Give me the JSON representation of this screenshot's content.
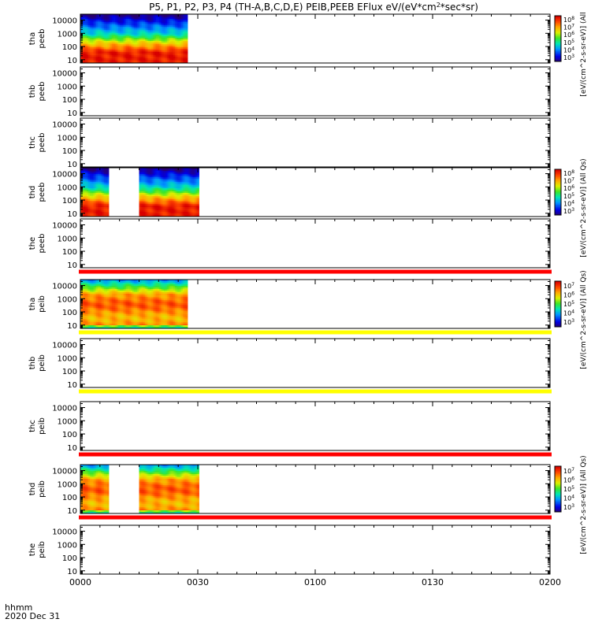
{
  "chart_data": {
    "type": "heatmap",
    "title": "P5, P1, P2, P3, P4 (TH-A,B,C,D,E) PEIB,PEEB EFlux eV/(eV*cm2*sec*sr)",
    "title_parts": {
      "prefix": "P5, P1, P2, P3, P4 (TH-A,B,C,D,E) PEIB,PEEB EFlux eV/(eV*cm",
      "sup": "2",
      "suffix": "*sec*sr)"
    },
    "xlabel": {
      "line1": "hhmm",
      "line2": "2020 Dec 31"
    },
    "x_ticks": [
      "0000",
      "0030",
      "0100",
      "0130",
      "0200"
    ],
    "x_range_minutes": [
      0,
      120
    ],
    "y_ticks": [
      "10",
      "100",
      "1000",
      "10000"
    ],
    "y_log_range": [
      0.75,
      4.45
    ],
    "colorbar_labels": {
      "peeb": "[eV/(cm^2-s-sr-eV)] (All Qs)",
      "peib": "[eV/(cm^2-s-sr-eV)] (All Qs)"
    },
    "panels": [
      {
        "id": "tha-peeb",
        "label1": "tha",
        "label2": "peeb",
        "colorbar": {
          "ticks": [
            "10^3",
            "10^4",
            "10^5",
            "10^6",
            "10^7",
            "10^8"
          ],
          "label": "[eV/(cm^2-s-sr-eV)] (All"
        },
        "flag": null,
        "data_intervals": [
          [
            0,
            27
          ]
        ],
        "profile": "electron"
      },
      {
        "id": "thb-peeb",
        "label1": "thb",
        "label2": "peeb",
        "colorbar": null,
        "flag": null,
        "data_intervals": [],
        "profile": "none"
      },
      {
        "id": "thc-peeb",
        "label1": "thc",
        "label2": "peeb",
        "colorbar": null,
        "flag": null,
        "data_intervals": [],
        "profile": "none"
      },
      {
        "id": "thd-peeb",
        "label1": "thd",
        "label2": "peeb",
        "colorbar": {
          "ticks": [
            "10^3",
            "10^4",
            "10^5",
            "10^6",
            "10^7",
            "10^8"
          ],
          "label": "[eV/(cm^2-s-sr-eV)] (All Qs)"
        },
        "flag": null,
        "data_intervals": [
          [
            0,
            7
          ],
          [
            15,
            30
          ]
        ],
        "profile": "electron"
      },
      {
        "id": "the-peeb",
        "label1": "the",
        "label2": "peeb",
        "colorbar": null,
        "flag": "red",
        "data_intervals": [],
        "profile": "none"
      },
      {
        "id": "tha-peib",
        "label1": "tha",
        "label2": "peib",
        "colorbar": {
          "ticks": [
            "10^3",
            "10^4",
            "10^5",
            "10^6",
            "10^7"
          ],
          "label": "[eV/(cm^2-s-sr-eV)] (All Qs)"
        },
        "flag": "yellow",
        "data_intervals": [
          [
            0,
            27
          ]
        ],
        "profile": "ion"
      },
      {
        "id": "thb-peib",
        "label1": "thb",
        "label2": "peib",
        "colorbar": null,
        "flag": "yellow",
        "data_intervals": [],
        "profile": "none"
      },
      {
        "id": "thc-peib",
        "label1": "thc",
        "label2": "peib",
        "colorbar": null,
        "flag": "red",
        "data_intervals": [],
        "profile": "none"
      },
      {
        "id": "thd-peib",
        "label1": "thd",
        "label2": "peib",
        "colorbar": {
          "ticks": [
            "10^3",
            "10^4",
            "10^5",
            "10^6",
            "10^7"
          ],
          "label": "[eV/(cm^2-s-sr-eV)] (All Qs)"
        },
        "flag": "red",
        "data_intervals": [
          [
            0,
            7
          ],
          [
            15,
            30
          ]
        ],
        "profile": "ion"
      },
      {
        "id": "the-peib",
        "label1": "the",
        "label2": "peib",
        "colorbar": null,
        "flag": null,
        "data_intervals": [],
        "profile": "none"
      }
    ],
    "flag_colors": {
      "red": "#ff0000",
      "yellow": "#ffff00"
    }
  }
}
